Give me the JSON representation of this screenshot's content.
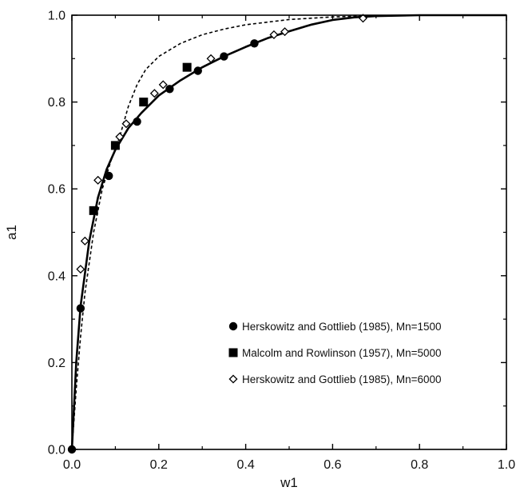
{
  "chart_data": {
    "type": "scatter",
    "title": "",
    "xlabel": "w1",
    "ylabel": "a1",
    "xlim": [
      0.0,
      1.0
    ],
    "ylim": [
      0.0,
      1.0
    ],
    "x_ticks": [
      "0.0",
      "0.2",
      "0.4",
      "0.6",
      "0.8",
      "1.0"
    ],
    "y_ticks": [
      "0.0",
      "0.2",
      "0.4",
      "0.6",
      "0.8",
      "1.0"
    ],
    "grid": false,
    "legend_position": "bottom-right",
    "series": [
      {
        "name": "Herskowitz and Gottlieb (1985), Mn=1500",
        "marker": "filled-circle",
        "points": [
          [
            0.0,
            0.0
          ],
          [
            0.02,
            0.325
          ],
          [
            0.05,
            0.55
          ],
          [
            0.085,
            0.63
          ],
          [
            0.15,
            0.755
          ],
          [
            0.225,
            0.83
          ],
          [
            0.29,
            0.872
          ],
          [
            0.35,
            0.905
          ],
          [
            0.42,
            0.935
          ]
        ]
      },
      {
        "name": "Malcolm and Rowlinson (1957), Mn=5000",
        "marker": "filled-square",
        "points": [
          [
            0.05,
            0.55
          ],
          [
            0.1,
            0.7
          ],
          [
            0.165,
            0.8
          ],
          [
            0.265,
            0.88
          ]
        ]
      },
      {
        "name": "Herskowitz and Gottlieb (1985), Mn=6000",
        "marker": "open-diamond",
        "points": [
          [
            0.02,
            0.415
          ],
          [
            0.03,
            0.48
          ],
          [
            0.06,
            0.62
          ],
          [
            0.11,
            0.72
          ],
          [
            0.125,
            0.75
          ],
          [
            0.19,
            0.82
          ],
          [
            0.21,
            0.84
          ],
          [
            0.32,
            0.9
          ],
          [
            0.465,
            0.955
          ],
          [
            0.49,
            0.962
          ],
          [
            0.67,
            0.993
          ]
        ]
      }
    ],
    "curves": [
      {
        "style": "solid",
        "points": [
          [
            0.0,
            0.0
          ],
          [
            0.01,
            0.2
          ],
          [
            0.02,
            0.33
          ],
          [
            0.04,
            0.48
          ],
          [
            0.06,
            0.58
          ],
          [
            0.08,
            0.645
          ],
          [
            0.1,
            0.69
          ],
          [
            0.13,
            0.74
          ],
          [
            0.16,
            0.775
          ],
          [
            0.2,
            0.815
          ],
          [
            0.25,
            0.85
          ],
          [
            0.3,
            0.88
          ],
          [
            0.35,
            0.905
          ],
          [
            0.4,
            0.927
          ],
          [
            0.45,
            0.947
          ],
          [
            0.5,
            0.963
          ],
          [
            0.55,
            0.978
          ],
          [
            0.6,
            0.989
          ],
          [
            0.65,
            0.995
          ],
          [
            0.7,
            0.998
          ],
          [
            0.8,
            1.0
          ],
          [
            0.9,
            1.0
          ],
          [
            1.0,
            1.0
          ]
        ]
      },
      {
        "style": "dashed",
        "points": [
          [
            0.0,
            0.0
          ],
          [
            0.01,
            0.14
          ],
          [
            0.02,
            0.26
          ],
          [
            0.03,
            0.36
          ],
          [
            0.05,
            0.5
          ],
          [
            0.07,
            0.6
          ],
          [
            0.09,
            0.665
          ],
          [
            0.11,
            0.72
          ],
          [
            0.13,
            0.79
          ],
          [
            0.15,
            0.84
          ],
          [
            0.17,
            0.875
          ],
          [
            0.2,
            0.905
          ],
          [
            0.25,
            0.935
          ],
          [
            0.3,
            0.955
          ],
          [
            0.35,
            0.968
          ],
          [
            0.4,
            0.978
          ],
          [
            0.5,
            0.99
          ],
          [
            0.6,
            0.996
          ],
          [
            0.7,
            0.999
          ],
          [
            0.8,
            1.0
          ],
          [
            1.0,
            1.0
          ]
        ]
      }
    ]
  }
}
